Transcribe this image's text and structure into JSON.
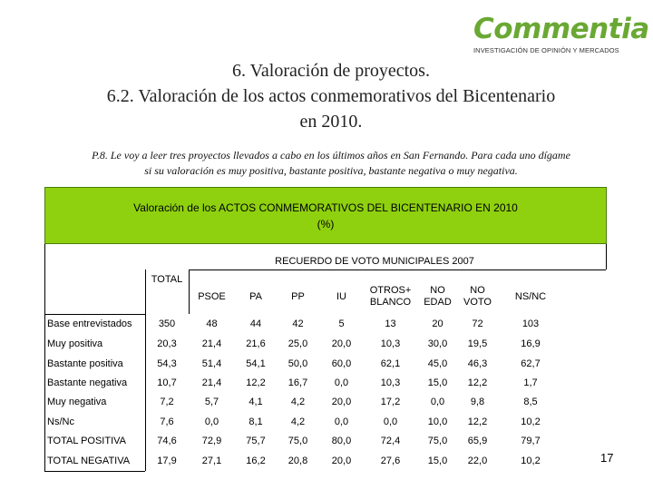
{
  "logo": {
    "name": "Commentia",
    "tagline": "INVESTIGACIÓN DE OPINIÓN Y MERCADOS"
  },
  "title_line1": "6. Valoración de proyectos.",
  "title_line2": "6.2. Valoración de los actos conmemorativos del Bicentenario",
  "title_line3": "en 2010.",
  "question_line1": "P.8. Le voy a leer tres proyectos llevados a cabo en los últimos años en San Fernando. Para cada uno dígame",
  "question_line2": "si su valoración es muy positiva, bastante positiva, bastante negativa o muy negativa.",
  "table_title_line1": "Valoración de los ACTOS CONMEMORATIVOS DEL BICENTENARIO EN 2010",
  "table_title_line2": "(%)",
  "group_header": "RECUERDO DE VOTO MUNICIPALES 2007",
  "total_header": "TOTAL",
  "columns": [
    "PSOE",
    "PA",
    "PP",
    "IU",
    "OTROS+ BLANCO",
    "NO EDAD",
    "NO VOTO",
    "NS/NC"
  ],
  "rows": [
    {
      "label": "Base entrevistados",
      "total": "350",
      "values": [
        "48",
        "44",
        "42",
        "5",
        "13",
        "20",
        "72",
        "103"
      ]
    },
    {
      "label": "Muy positiva",
      "total": "20,3",
      "values": [
        "21,4",
        "21,6",
        "25,0",
        "20,0",
        "10,3",
        "30,0",
        "19,5",
        "16,9"
      ]
    },
    {
      "label": "Bastante positiva",
      "total": "54,3",
      "values": [
        "51,4",
        "54,1",
        "50,0",
        "60,0",
        "62,1",
        "45,0",
        "46,3",
        "62,7"
      ]
    },
    {
      "label": "Bastante negativa",
      "total": "10,7",
      "values": [
        "21,4",
        "12,2",
        "16,7",
        "0,0",
        "10,3",
        "15,0",
        "12,2",
        "1,7"
      ]
    },
    {
      "label": "Muy negativa",
      "total": "7,2",
      "values": [
        "5,7",
        "4,1",
        "4,2",
        "20,0",
        "17,2",
        "0,0",
        "9,8",
        "8,5"
      ]
    },
    {
      "label": "Ns/Nc",
      "total": "7,6",
      "values": [
        "0,0",
        "8,1",
        "4,2",
        "0,0",
        "0,0",
        "10,0",
        "12,2",
        "10,2"
      ]
    },
    {
      "label": "TOTAL POSITIVA",
      "total": "74,6",
      "values": [
        "72,9",
        "75,7",
        "75,0",
        "80,0",
        "72,4",
        "75,0",
        "65,9",
        "79,7"
      ]
    },
    {
      "label": "TOTAL NEGATIVA",
      "total": "17,9",
      "values": [
        "27,1",
        "16,2",
        "20,8",
        "20,0",
        "27,6",
        "15,0",
        "22,0",
        "10,2"
      ]
    }
  ],
  "page_number": "17",
  "colors": {
    "header_bg": "#8fd10f",
    "logo": "#6aa834"
  }
}
